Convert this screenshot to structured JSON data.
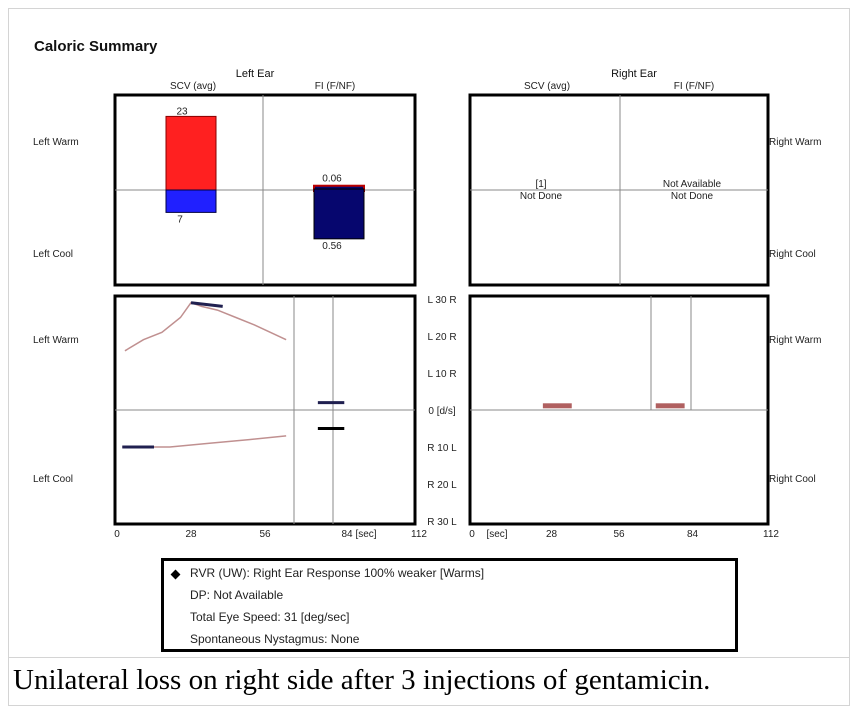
{
  "chart_data": {
    "type": "bar",
    "title": "Caloric Summary",
    "caption": "Unilateral loss on right side after 3 injections of gentamicin.",
    "left_ear": {
      "header": "Left Ear",
      "col1": "SCV (avg)",
      "col2": "FI (F/NF)",
      "row_top": "Left Warm",
      "row_bottom": "Left Cool",
      "scv_warm": 23,
      "scv_cool": 7,
      "scv_warm_label": "23",
      "scv_cool_label": "7",
      "fi_warm": 0.06,
      "fi_cool": 0.56,
      "fi_warm_label": "0.06",
      "fi_cool_label": "0.56"
    },
    "right_ear": {
      "header": "Right Ear",
      "col1": "SCV (avg)",
      "col2": "FI (F/NF)",
      "row_top": "Right Warm",
      "row_bottom": "Right Cool",
      "scv_value_label": "[1]",
      "scv_status": "Not Done",
      "fi_value_label": "Not Available",
      "fi_status": "Not Done"
    },
    "axis": {
      "scale_labels": [
        "L 30 R",
        "L 20 R",
        "L 10 R",
        "0 [d/s]",
        "R 10 L",
        "R 20 L",
        "R 30 L"
      ],
      "scale_values": [
        30,
        20,
        10,
        0,
        -10,
        -20,
        -30
      ],
      "left_ticks": [
        "0",
        "28",
        "56",
        "84",
        "[sec]",
        "112"
      ],
      "left_tick_values": [
        0,
        28,
        56,
        84,
        112
      ],
      "right_ticks": [
        "0",
        "[sec]",
        "28",
        "56",
        "84",
        "112"
      ],
      "right_tick_values": [
        0,
        28,
        56,
        84,
        112
      ],
      "xlim": [
        0,
        112
      ],
      "ylim": [
        -30,
        30
      ]
    },
    "left_warm_trace": [
      [
        3,
        16
      ],
      [
        10,
        19
      ],
      [
        17,
        21
      ],
      [
        24,
        25
      ],
      [
        28,
        29
      ],
      [
        32,
        28
      ],
      [
        38,
        27
      ],
      [
        45,
        25
      ],
      [
        52,
        23
      ],
      [
        58,
        21
      ],
      [
        64,
        19
      ]
    ],
    "left_cool_trace": [
      [
        2,
        -10
      ],
      [
        10,
        -10
      ],
      [
        20,
        -10
      ],
      [
        35,
        -9
      ],
      [
        50,
        -8
      ],
      [
        64,
        -7
      ]
    ],
    "left_warm_peak": [
      [
        28,
        29
      ],
      [
        40,
        28
      ]
    ],
    "left_cool_peak": [
      [
        2,
        -10
      ],
      [
        14,
        -10
      ]
    ],
    "left_fi_warm_marks": [
      [
        76,
        2
      ],
      [
        86,
        2
      ]
    ],
    "left_fi_cool_marks": [
      [
        76,
        -5
      ],
      [
        86,
        -5
      ]
    ],
    "right_blocks": [
      [
        27,
        38,
        1
      ],
      [
        70,
        81,
        1
      ]
    ]
  },
  "legend": {
    "lines": [
      "RVR (UW): Right Ear Response 100% weaker [Warms]",
      "DP: Not Available",
      "Total Eye Speed: 31 [deg/sec]",
      "Spontaneous Nystagmus: None"
    ]
  },
  "colors": {
    "warm": "#ff2020",
    "cool": "#2020ff",
    "fi": "#06066e",
    "trace": "#c09090",
    "trace_peak": "#202050",
    "block": "#b06060"
  }
}
